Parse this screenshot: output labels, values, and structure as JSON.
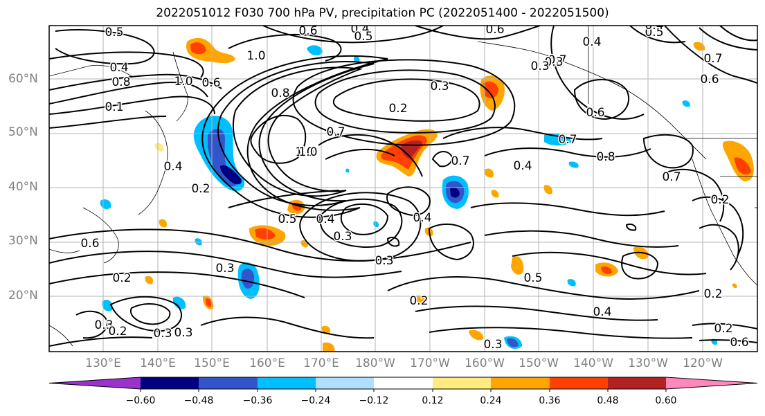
{
  "title": "2022051012 F030 700 hPa PV, precipitation PC (2022051400 - 2022051500)",
  "lat_labels": [
    "60°N",
    "50°N",
    "40°N",
    "30°N",
    "20°N"
  ],
  "lon_labels": [
    "130°E",
    "140°E",
    "150°E",
    "160°E",
    "170°E",
    "180°W",
    "170°W",
    "160°W",
    "150°W",
    "140°W",
    "130°W",
    "120°W"
  ],
  "colorbar": {
    "ticks": [
      "−0.60",
      "−0.48",
      "−0.36",
      "−0.24",
      "−0.12",
      "0.12",
      "0.24",
      "0.36",
      "0.48",
      "0.60"
    ],
    "colors": [
      "#9933cc",
      "#000080",
      "#3355cc",
      "#00bfff",
      "#b0e0ff",
      "#ffffff",
      "#ffeb80",
      "#ffa500",
      "#ff4000",
      "#b22222",
      "#ff88bb"
    ]
  },
  "contour_labels": [
    "0.5",
    "0.6",
    "0.4",
    "0.5",
    "0.6",
    "0.5",
    "0.4",
    "1.0",
    "0.4",
    "0.8",
    "1.0",
    "0.6",
    "0.8",
    "0.3",
    "0.2",
    "0.4",
    "0.7",
    "0.7",
    "0.6",
    "0.7",
    "0.8",
    "0.2",
    "0.4",
    "1.0",
    "0.7",
    "0.4",
    "0.7",
    "0.4",
    "0.3",
    "0.5",
    "0.3",
    "0.3",
    "0.5",
    "0.2",
    "0.3",
    "0.2",
    "0.3",
    "0.3",
    "0.2",
    "0.4",
    "0.2",
    "0.3",
    "0.2",
    "0.6",
    "0.8",
    "0.6",
    "0.7",
    "0.3",
    "0.2",
    "0.3",
    "1.0",
    "0.4",
    "0.1",
    "0.6"
  ]
}
